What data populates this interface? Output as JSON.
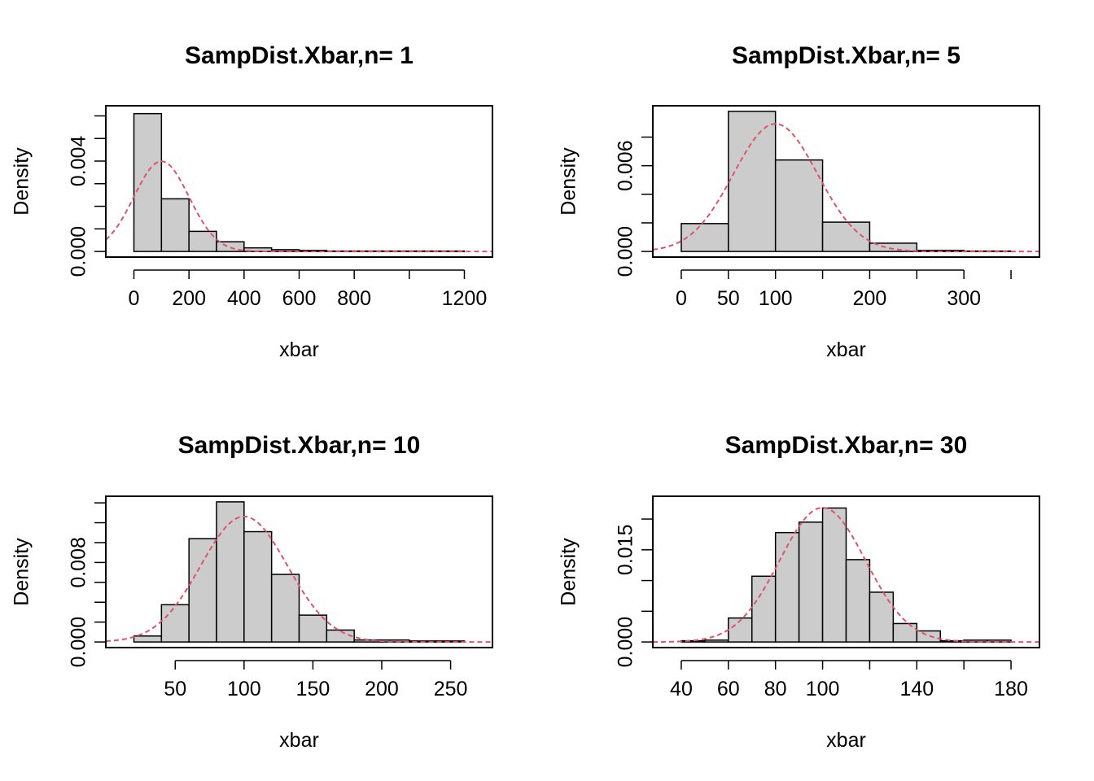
{
  "chart_data": [
    {
      "type": "bar",
      "title": "SampDist.Xbar,n= 1",
      "xlabel": "xbar",
      "ylabel": "Density",
      "xlim": [
        -50,
        1250
      ],
      "ylim": [
        0,
        0.0062
      ],
      "xticks": [
        0,
        200,
        400,
        600,
        800,
        1200
      ],
      "yticks": [
        0,
        0.001,
        0.002,
        0.003,
        0.004,
        0.005,
        0.006
      ],
      "ytick_labels": [
        {
          "v": 0,
          "label": "0.000"
        },
        {
          "v": 0.004,
          "label": "0.004"
        }
      ],
      "bins": [
        {
          "from": 0,
          "to": 100,
          "density": 0.0061
        },
        {
          "from": 100,
          "to": 200,
          "density": 0.00233
        },
        {
          "from": 200,
          "to": 300,
          "density": 0.00089
        },
        {
          "from": 300,
          "to": 400,
          "density": 0.00043
        },
        {
          "from": 400,
          "to": 500,
          "density": 0.00016
        },
        {
          "from": 500,
          "to": 600,
          "density": 8e-05
        },
        {
          "from": 600,
          "to": 700,
          "density": 5e-05
        },
        {
          "from": 700,
          "to": 800,
          "density": 2e-05
        },
        {
          "from": 800,
          "to": 900,
          "density": 2e-05
        },
        {
          "from": 900,
          "to": 1000,
          "density": 2e-05
        },
        {
          "from": 1000,
          "to": 1100,
          "density": 2e-05
        },
        {
          "from": 1100,
          "to": 1200,
          "density": 2e-05
        }
      ],
      "normal_curve": {
        "mean": 100,
        "sd": 100,
        "color": "#DF536B"
      }
    },
    {
      "type": "bar",
      "title": "SampDist.Xbar,n= 5",
      "xlabel": "xbar",
      "ylabel": "Density",
      "xlim": [
        -15,
        365
      ],
      "ylim": [
        0,
        0.0098
      ],
      "xticks": [
        0,
        50,
        100,
        200,
        300
      ],
      "yticks": [
        0,
        0.002,
        0.004,
        0.006,
        0.008
      ],
      "ytick_labels": [
        {
          "v": 0,
          "label": "0.000"
        },
        {
          "v": 0.006,
          "label": "0.006"
        }
      ],
      "bins": [
        {
          "from": 0,
          "to": 50,
          "density": 0.00195
        },
        {
          "from": 50,
          "to": 100,
          "density": 0.0098
        },
        {
          "from": 100,
          "to": 150,
          "density": 0.0064
        },
        {
          "from": 150,
          "to": 200,
          "density": 0.00205
        },
        {
          "from": 200,
          "to": 250,
          "density": 0.00058
        },
        {
          "from": 250,
          "to": 300,
          "density": 8e-05
        },
        {
          "from": 300,
          "to": 350,
          "density": 3e-05
        }
      ],
      "normal_curve": {
        "mean": 100,
        "sd": 44.7,
        "color": "#DF536B"
      }
    },
    {
      "type": "bar",
      "title": "SampDist.Xbar,n= 10",
      "xlabel": "xbar",
      "ylabel": "Density",
      "xlim": [
        10,
        270
      ],
      "ylim": [
        0,
        0.0141
      ],
      "xticks": [
        50,
        100,
        150,
        200,
        250
      ],
      "yticks": [
        0,
        0.002,
        0.004,
        0.006,
        0.008,
        0.01,
        0.012,
        0.014
      ],
      "ytick_labels": [
        {
          "v": 0,
          "label": "0.000"
        },
        {
          "v": 0.008,
          "label": "0.008"
        }
      ],
      "bins": [
        {
          "from": 20,
          "to": 40,
          "density": 0.0006
        },
        {
          "from": 40,
          "to": 60,
          "density": 0.00375
        },
        {
          "from": 60,
          "to": 80,
          "density": 0.0104
        },
        {
          "from": 80,
          "to": 100,
          "density": 0.0141
        },
        {
          "from": 100,
          "to": 120,
          "density": 0.0111
        },
        {
          "from": 120,
          "to": 140,
          "density": 0.0068
        },
        {
          "from": 140,
          "to": 160,
          "density": 0.0027
        },
        {
          "from": 160,
          "to": 180,
          "density": 0.0012
        },
        {
          "from": 180,
          "to": 200,
          "density": 0.0002
        },
        {
          "from": 200,
          "to": 220,
          "density": 0.0002
        },
        {
          "from": 220,
          "to": 240,
          "density": 0.0001
        },
        {
          "from": 240,
          "to": 260,
          "density": 0.0001
        }
      ],
      "normal_curve": {
        "mean": 100,
        "sd": 31.6,
        "color": "#DF536B"
      }
    },
    {
      "type": "bar",
      "title": "SampDist.Xbar,n= 30",
      "xlabel": "xbar",
      "ylabel": "Density",
      "xlim": [
        34,
        186
      ],
      "ylim": [
        0,
        0.0228
      ],
      "xticks": [
        40,
        60,
        80,
        100,
        140,
        180
      ],
      "yticks": [
        0,
        0.005,
        0.01,
        0.015,
        0.02
      ],
      "ytick_labels": [
        {
          "v": 0,
          "label": "0.000"
        },
        {
          "v": 0.015,
          "label": "0.015"
        }
      ],
      "bins": [
        {
          "from": 40,
          "to": 50,
          "density": 0.0002
        },
        {
          "from": 50,
          "to": 60,
          "density": 0.0003
        },
        {
          "from": 60,
          "to": 70,
          "density": 0.0039
        },
        {
          "from": 70,
          "to": 80,
          "density": 0.0107
        },
        {
          "from": 80,
          "to": 90,
          "density": 0.0178
        },
        {
          "from": 90,
          "to": 100,
          "density": 0.0195
        },
        {
          "from": 100,
          "to": 110,
          "density": 0.0218
        },
        {
          "from": 110,
          "to": 120,
          "density": 0.0134
        },
        {
          "from": 120,
          "to": 130,
          "density": 0.0081
        },
        {
          "from": 130,
          "to": 140,
          "density": 0.003
        },
        {
          "from": 140,
          "to": 150,
          "density": 0.0018
        },
        {
          "from": 150,
          "to": 160,
          "density": 0.0002
        },
        {
          "from": 160,
          "to": 170,
          "density": 0.0003
        },
        {
          "from": 170,
          "to": 180,
          "density": 0.0003
        }
      ],
      "normal_curve": {
        "mean": 100,
        "sd": 18.26,
        "color": "#DF536B"
      }
    }
  ],
  "colors": {
    "bar_fill": "#CCCCCC",
    "bar_stroke": "#000000",
    "curve": "#DF536B",
    "axis": "#000000"
  }
}
